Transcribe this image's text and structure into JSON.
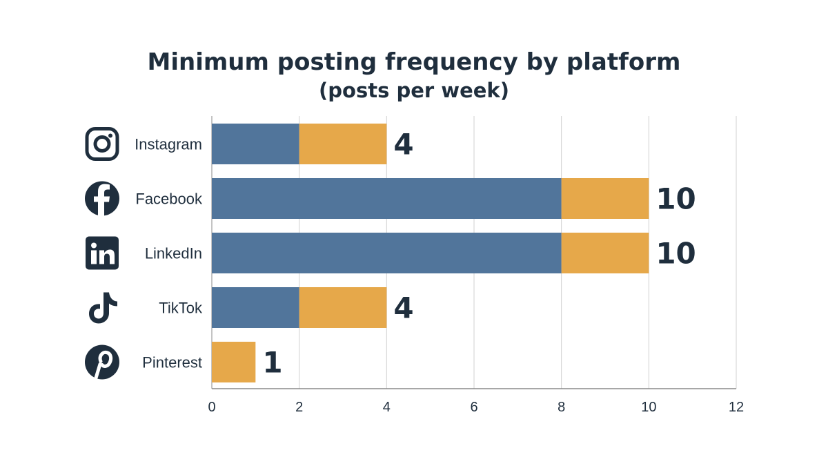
{
  "chart_data": {
    "type": "bar",
    "orientation": "horizontal",
    "stacked": true,
    "title": "Minimum posting frequency by platform",
    "subtitle": "(posts per week)",
    "categories": [
      "Instagram",
      "Facebook",
      "LinkedIn",
      "TikTok",
      "Pinterest"
    ],
    "icons": [
      "instagram-icon",
      "facebook-icon",
      "linkedin-icon",
      "tiktok-icon",
      "pinterest-icon"
    ],
    "series": [
      {
        "values": [
          2,
          8,
          8,
          2,
          0
        ],
        "color": "#51759b"
      },
      {
        "values": [
          2,
          2,
          2,
          2,
          1
        ],
        "color": "#e6a84a"
      }
    ],
    "totals": [
      "4",
      "10",
      "10",
      "4",
      "1"
    ],
    "xlim": [
      0,
      12
    ],
    "xticks": [
      "0",
      "2",
      "4",
      "6",
      "8",
      "10",
      "12"
    ],
    "grid": true,
    "colors": {
      "text": "#1f2e3d",
      "grid": "#d0d0d0",
      "icon": "#1f2e3d"
    }
  }
}
